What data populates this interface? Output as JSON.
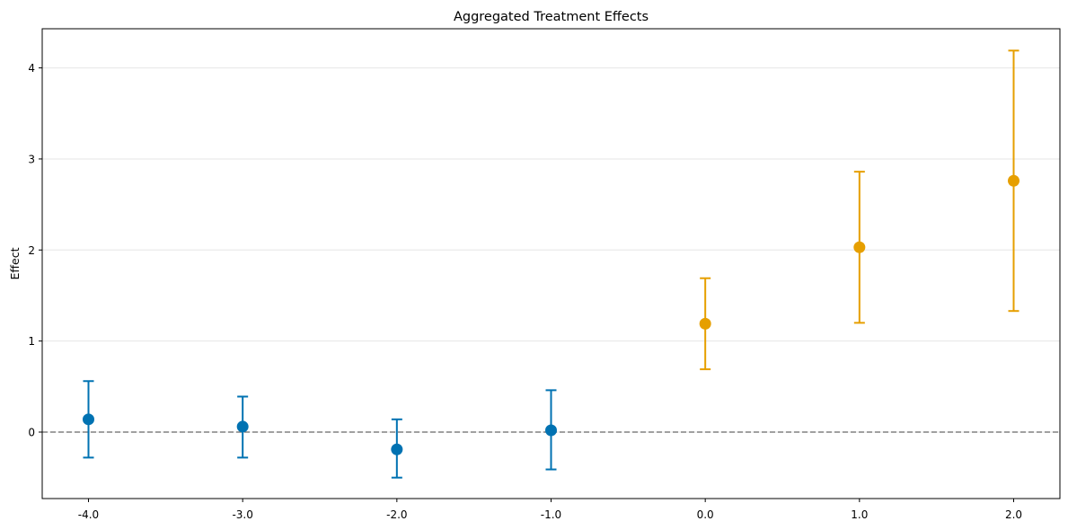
{
  "chart_data": {
    "type": "errorbar",
    "title": "Aggregated Treatment Effects",
    "xlabel": "",
    "ylabel": "Effect",
    "xlim": [
      -4.3,
      2.3
    ],
    "ylim": [
      -0.73,
      4.43
    ],
    "x_ticks": [
      "-4.0",
      "-3.0",
      "-2.0",
      "-1.0",
      "0.0",
      "1.0",
      "2.0"
    ],
    "y_ticks": [
      "0",
      "1",
      "2",
      "3",
      "4"
    ],
    "grid": "horizontal",
    "reference_line": {
      "y": 0,
      "style": "dashed",
      "color": "#808080"
    },
    "colors": {
      "pre": "#0072B2",
      "post": "#E69F00"
    },
    "series": [
      {
        "points": [
          {
            "x": -4,
            "y": 0.14,
            "lower": -0.28,
            "upper": 0.56
          },
          {
            "x": -3,
            "y": 0.06,
            "lower": -0.28,
            "upper": 0.39
          },
          {
            "x": -2,
            "y": -0.19,
            "lower": -0.5,
            "upper": 0.14
          },
          {
            "x": -1,
            "y": 0.02,
            "lower": -0.41,
            "upper": 0.46
          }
        ]
      },
      {
        "points": [
          {
            "x": 0,
            "y": 1.19,
            "lower": 0.69,
            "upper": 1.69
          },
          {
            "x": 1,
            "y": 2.03,
            "lower": 1.2,
            "upper": 2.86
          },
          {
            "x": 2,
            "y": 2.76,
            "lower": 1.33,
            "upper": 4.19
          }
        ]
      }
    ]
  }
}
